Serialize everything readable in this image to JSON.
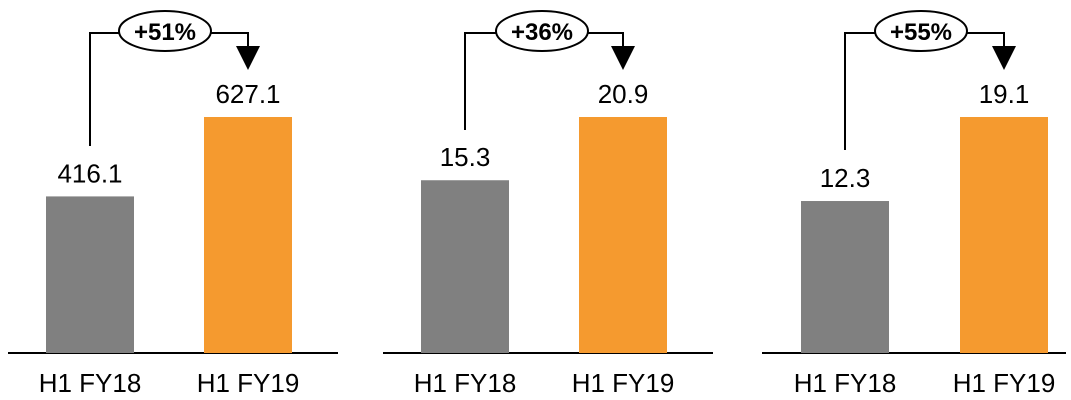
{
  "colors": {
    "previous": "#808080",
    "current": "#F59A2F",
    "axis": "#000000"
  },
  "chart_data": [
    {
      "type": "bar",
      "categories": [
        "H1 FY18",
        "H1 FY19"
      ],
      "values": [
        416.1,
        627.1
      ],
      "value_labels": [
        "416.1",
        "627.1"
      ],
      "growth": "+51%",
      "ylim": [
        0,
        627.1
      ]
    },
    {
      "type": "bar",
      "categories": [
        "H1 FY18",
        "H1 FY19"
      ],
      "values": [
        15.3,
        20.9
      ],
      "value_labels": [
        "15.3",
        "20.9"
      ],
      "growth": "+36%",
      "ylim": [
        0,
        20.9
      ]
    },
    {
      "type": "bar",
      "categories": [
        "H1 FY18",
        "H1 FY19"
      ],
      "values": [
        12.3,
        19.1
      ],
      "value_labels": [
        "12.3",
        "19.1"
      ],
      "growth": "+55%",
      "ylim": [
        0,
        19.1
      ]
    }
  ]
}
